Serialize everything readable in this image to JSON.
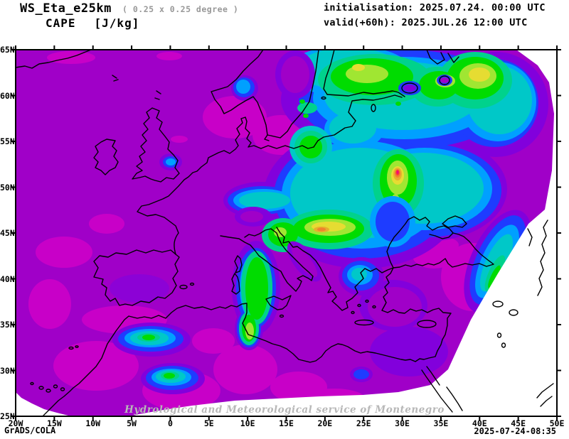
{
  "header": {
    "model": "WS_Eta_e25km",
    "resolution": "( 0.25 x 0.25 degree )",
    "variable": "CAPE",
    "units": "[J/kg]",
    "init_line": "initialisation: 2025.07.24. 00:00 UTC",
    "valid_line": "valid(+60h): 2025.JUL.26 12:00 UTC"
  },
  "map": {
    "lat_labels": [
      "65N",
      "60N",
      "55N",
      "50N",
      "45N",
      "40N",
      "35N",
      "30N",
      "25N"
    ],
    "lon_labels": [
      "20W",
      "15W",
      "10W",
      "5W",
      "0",
      "5E",
      "10E",
      "15E",
      "20E",
      "25E",
      "30E",
      "35E",
      "40E",
      "45E",
      "50E"
    ],
    "watermark": "Hydrological and Meteorological service of Montenegro"
  },
  "footer": {
    "credit": "GrADS/COLA",
    "timestamp": "2025-07-24-08:35"
  },
  "palette": {
    "lowest_magenta": "#c800c8",
    "low_purple": "#a000c8",
    "purple_blue": "#8200dc",
    "blue": "#1e3cff",
    "azure": "#00a0ff",
    "cyan": "#00c8c8",
    "aqua_green": "#00d28c",
    "green": "#00dc00",
    "yellow_green": "#a0e632",
    "yellow": "#e6dc32",
    "dark_yellow": "#e6af2d",
    "orange": "#f0822d",
    "red": "#fa3c3c",
    "hot_magenta": "#f00082",
    "coast": "#000000",
    "outside_domain": "#ffffff"
  }
}
